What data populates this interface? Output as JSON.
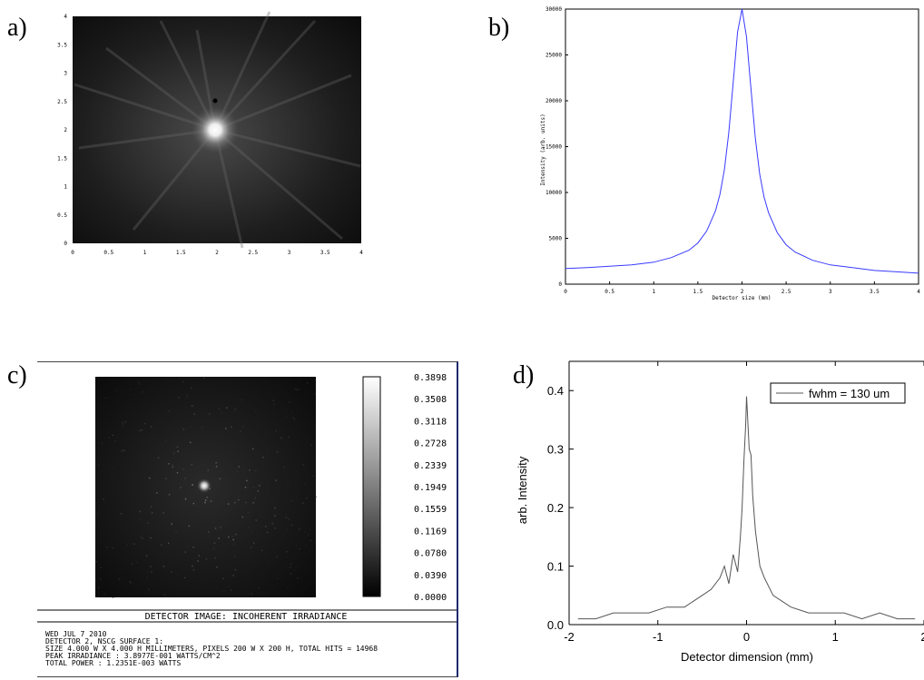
{
  "panels": {
    "a": {
      "label": "a)"
    },
    "b": {
      "label": "b)"
    },
    "c": {
      "label": "c)"
    },
    "d": {
      "label": "d)"
    }
  },
  "detector_image": {
    "title": "DETECTOR IMAGE: INCOHERENT IRRADIANCE",
    "info_lines": [
      "WED JUL 7 2010",
      "DETECTOR 2, NSCG SURFACE 1:",
      "SIZE 4.000 W X 4.000 H MILLIMETERS, PIXELS 200 W X 200 H, TOTAL HITS = 14968",
      "PEAK IRRADIANCE : 3.8977E-001 WATTS/CM^2",
      "TOTAL POWER     : 1.2351E-003 WATTS"
    ],
    "colorbar_labels": [
      "0.3898",
      "0.3508",
      "0.3118",
      "0.2728",
      "0.2339",
      "0.1949",
      "0.1559",
      "0.1169",
      "0.0780",
      "0.0390",
      "0.0000"
    ]
  },
  "chart_data": [
    {
      "panel": "a",
      "type": "heatmap",
      "x_ticks": [
        "0",
        "0.5",
        "1",
        "1.5",
        "2",
        "2.5",
        "3",
        "3.5",
        "4"
      ],
      "y_ticks": [
        "0",
        "0.5",
        "1",
        "1.5",
        "2",
        "2.5",
        "3",
        "3.5",
        "4"
      ],
      "xlim": [
        0,
        4
      ],
      "ylim": [
        0,
        4
      ],
      "peak_center": [
        2.0,
        1.98
      ]
    },
    {
      "panel": "b",
      "type": "line",
      "xlabel": "Detector size (mm)",
      "ylabel": "Intensity (arb. units)",
      "xlim": [
        0,
        4
      ],
      "ylim": [
        0,
        30000
      ],
      "x_ticks": [
        "0",
        "0.5",
        "1",
        "1.5",
        "2",
        "2.5",
        "3",
        "3.5",
        "4"
      ],
      "y_ticks": [
        "0",
        "5000",
        "10000",
        "15000",
        "20000",
        "25000",
        "30000"
      ],
      "series": [
        {
          "color": "#3a3aff",
          "x": [
            0,
            0.25,
            0.5,
            0.75,
            1.0,
            1.2,
            1.4,
            1.5,
            1.6,
            1.7,
            1.75,
            1.8,
            1.85,
            1.9,
            1.95,
            2.0,
            2.05,
            2.1,
            2.15,
            2.2,
            2.25,
            2.3,
            2.4,
            2.5,
            2.6,
            2.8,
            3.0,
            3.25,
            3.5,
            3.75,
            4.0
          ],
          "y": [
            1700,
            1800,
            1950,
            2100,
            2400,
            2900,
            3700,
            4500,
            5800,
            8000,
            9800,
            12500,
            16500,
            22000,
            27500,
            30000,
            27000,
            21500,
            16000,
            12000,
            9500,
            7800,
            5600,
            4300,
            3500,
            2600,
            2100,
            1800,
            1500,
            1350,
            1200
          ]
        }
      ]
    },
    {
      "panel": "c",
      "type": "heatmap",
      "peak_value": 0.3898,
      "colorbar_range": [
        0.0,
        0.3898
      ]
    },
    {
      "panel": "d",
      "type": "line",
      "xlabel": "Detector dimension (mm)",
      "ylabel": "arb. Intensity",
      "xlim": [
        -2,
        2
      ],
      "ylim": [
        0,
        0.45
      ],
      "x_ticks": [
        "-2",
        "-1",
        "0",
        "1",
        "2"
      ],
      "y_ticks": [
        "0.0",
        "0.1",
        "0.2",
        "0.3",
        "0.4"
      ],
      "legend": "fwhm = 130 um",
      "legend_position": "top-right",
      "series": [
        {
          "name": "fwhm = 130 um",
          "color": "#555555",
          "x": [
            -1.9,
            -1.7,
            -1.5,
            -1.3,
            -1.1,
            -0.9,
            -0.7,
            -0.5,
            -0.4,
            -0.3,
            -0.25,
            -0.2,
            -0.15,
            -0.1,
            -0.07,
            -0.05,
            -0.03,
            -0.01,
            0.0,
            0.01,
            0.03,
            0.05,
            0.07,
            0.1,
            0.15,
            0.2,
            0.3,
            0.5,
            0.7,
            0.9,
            1.1,
            1.3,
            1.5,
            1.7,
            1.9
          ],
          "y": [
            0.01,
            0.01,
            0.02,
            0.02,
            0.02,
            0.03,
            0.03,
            0.05,
            0.06,
            0.08,
            0.1,
            0.07,
            0.12,
            0.09,
            0.15,
            0.2,
            0.28,
            0.34,
            0.39,
            0.36,
            0.3,
            0.29,
            0.22,
            0.16,
            0.1,
            0.08,
            0.05,
            0.03,
            0.02,
            0.02,
            0.02,
            0.01,
            0.02,
            0.01,
            0.01
          ]
        }
      ]
    }
  ]
}
